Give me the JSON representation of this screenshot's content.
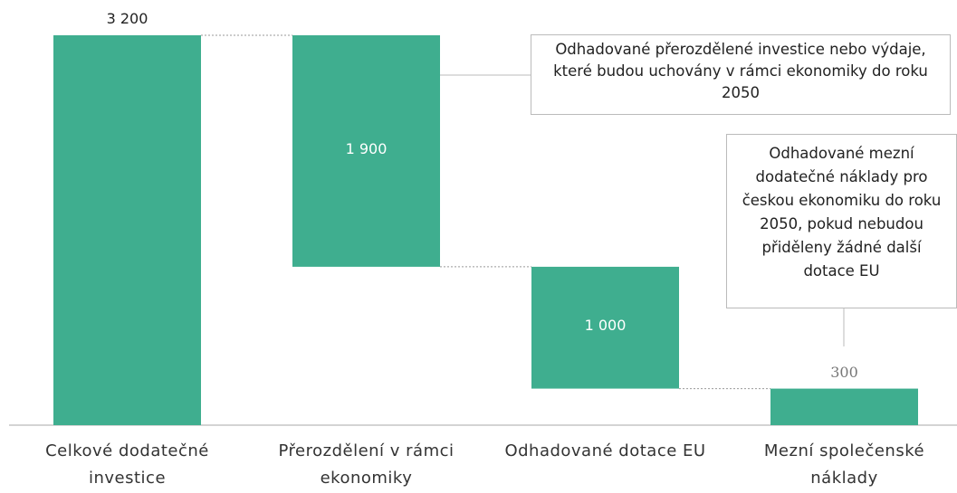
{
  "chart_data": {
    "type": "waterfall",
    "categories": [
      "Celkové dodatečné investice",
      "Přerozdělení v rámci ekonomiky",
      "Odhadované dotace EU",
      "Mezní společenské náklady"
    ],
    "values": [
      3200,
      1900,
      1000,
      300
    ],
    "value_labels": [
      "3 200",
      "1 900",
      "1 000",
      "300"
    ],
    "measures": [
      "total",
      "decrease",
      "decrease",
      "total"
    ],
    "color": "#3fae8f",
    "annotations": [
      "Odhadované přerozdělené investice nebo výdaje, které budou uchovány v rámci ekonomiky do roku 2050",
      "Odhadované mezní dodatečné náklady pro českou ekonomiku do roku 2050, pokud nebudou přiděleny žádné další dotace EU"
    ]
  }
}
